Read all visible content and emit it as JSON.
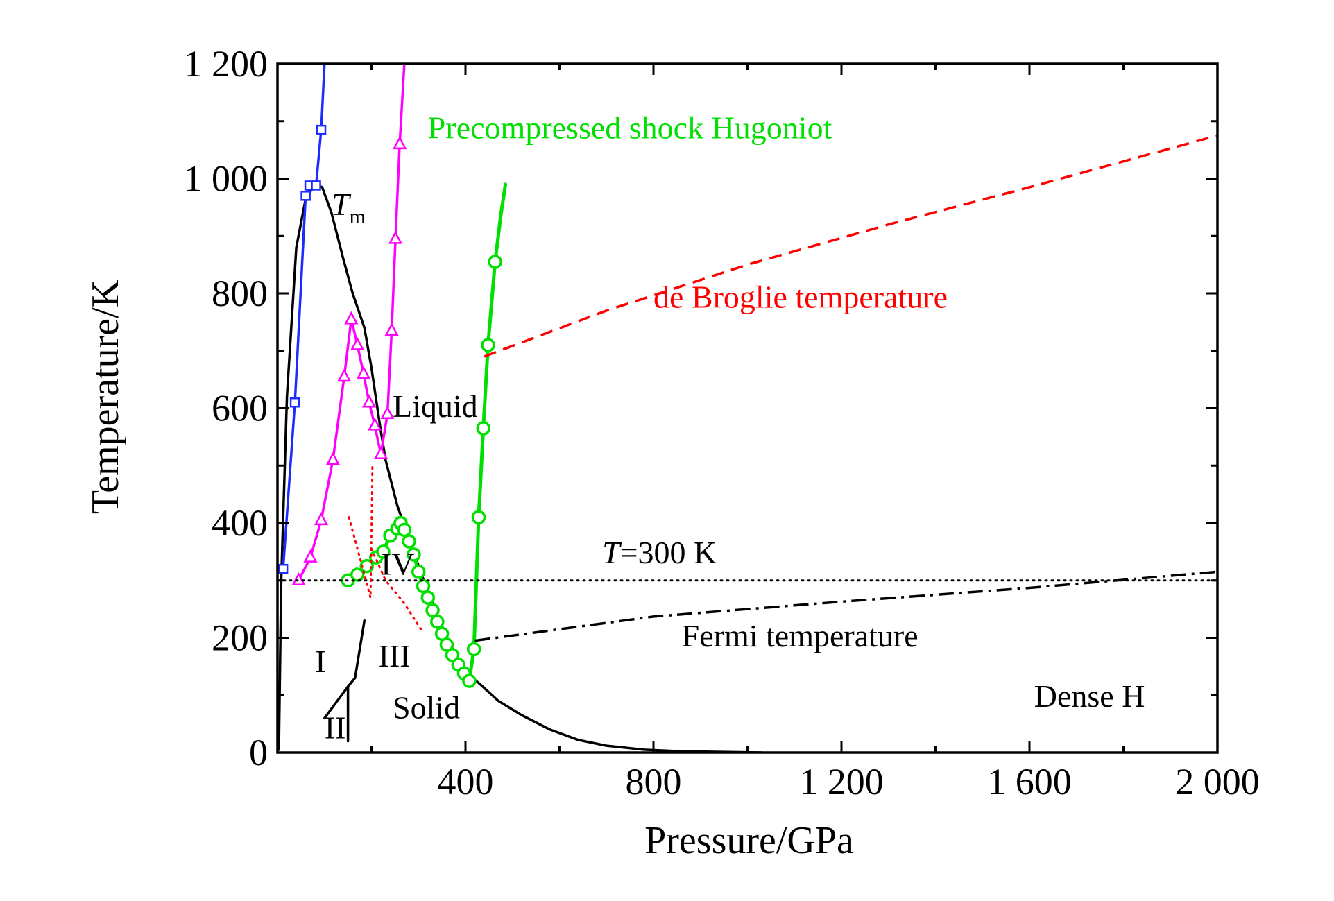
{
  "chart_data": {
    "type": "line",
    "title": "",
    "xlabel": "Pressure/GPa",
    "ylabel": "Temperature/K",
    "xlim": [
      0,
      2000
    ],
    "ylim": [
      0,
      1200
    ],
    "x_ticks": [
      {
        "value": 400,
        "label": "400"
      },
      {
        "value": 800,
        "label": "800"
      },
      {
        "value": 1200,
        "label": "1 200"
      },
      {
        "value": 1600,
        "label": "1 600"
      },
      {
        "value": 2000,
        "label": "2 000"
      }
    ],
    "y_ticks": [
      {
        "value": 0,
        "label": "0"
      },
      {
        "value": 200,
        "label": "200"
      },
      {
        "value": 400,
        "label": "400"
      },
      {
        "value": 600,
        "label": "600"
      },
      {
        "value": 800,
        "label": "800"
      },
      {
        "value": 1000,
        "label": "1 000"
      },
      {
        "value": 1200,
        "label": "1 200"
      }
    ],
    "colors": {
      "black": "#000000",
      "blue": "#1c2bff",
      "magenta": "#ff00ff",
      "green": "#00e000",
      "red": "#ff0000"
    },
    "series": [
      {
        "name": "melting-curve-Tm",
        "color": "black",
        "style": "solid",
        "marker": "none",
        "points": [
          [
            3,
            5
          ],
          [
            8,
            300
          ],
          [
            20,
            620
          ],
          [
            40,
            880
          ],
          [
            60,
            965
          ],
          [
            80,
            990
          ],
          [
            95,
            985
          ],
          [
            115,
            940
          ],
          [
            140,
            860
          ],
          [
            160,
            800
          ],
          [
            185,
            740
          ],
          [
            200,
            670
          ],
          [
            218,
            570
          ],
          [
            230,
            510
          ],
          [
            255,
            430
          ],
          [
            285,
            360
          ],
          [
            320,
            280
          ],
          [
            360,
            200
          ],
          [
            400,
            140
          ],
          [
            430,
            120
          ],
          [
            470,
            90
          ],
          [
            520,
            65
          ],
          [
            580,
            40
          ],
          [
            640,
            22
          ],
          [
            700,
            12
          ],
          [
            780,
            5
          ],
          [
            860,
            2
          ],
          [
            960,
            1
          ],
          [
            1030,
            0
          ]
        ]
      },
      {
        "name": "blue-squares",
        "color": "blue",
        "style": "solid",
        "marker": "square",
        "points": [
          [
            12,
            320
          ],
          [
            37,
            610
          ],
          [
            60,
            970
          ],
          [
            68,
            988
          ],
          [
            82,
            988
          ],
          [
            93,
            1085
          ],
          [
            100,
            1200
          ]
        ],
        "marker_points": [
          [
            12,
            320
          ],
          [
            37,
            610
          ],
          [
            60,
            970
          ],
          [
            68,
            988
          ],
          [
            82,
            988
          ],
          [
            93,
            1085
          ]
        ]
      },
      {
        "name": "magenta-triangles",
        "color": "magenta",
        "style": "solid",
        "marker": "triangle",
        "points": [
          [
            45,
            300
          ],
          [
            70,
            340
          ],
          [
            93,
            405
          ],
          [
            118,
            510
          ],
          [
            142,
            655
          ],
          [
            157,
            755
          ],
          [
            170,
            710
          ],
          [
            183,
            660
          ],
          [
            195,
            610
          ],
          [
            207,
            570
          ],
          [
            220,
            520
          ],
          [
            234,
            590
          ],
          [
            243,
            735
          ],
          [
            251,
            895
          ],
          [
            260,
            1060
          ],
          [
            270,
            1200
          ]
        ],
        "marker_points": [
          [
            45,
            300
          ],
          [
            70,
            340
          ],
          [
            93,
            405
          ],
          [
            118,
            510
          ],
          [
            142,
            655
          ],
          [
            157,
            755
          ],
          [
            170,
            710
          ],
          [
            183,
            660
          ],
          [
            195,
            610
          ],
          [
            207,
            570
          ],
          [
            220,
            520
          ],
          [
            234,
            590
          ],
          [
            243,
            735
          ],
          [
            251,
            895
          ],
          [
            260,
            1060
          ]
        ]
      },
      {
        "name": "Precompressed shock Hugoniot",
        "color": "green",
        "style": "solid",
        "marker": "circle",
        "points": [
          [
            150,
            300
          ],
          [
            170,
            310
          ],
          [
            190,
            325
          ],
          [
            210,
            340
          ],
          [
            225,
            350
          ],
          [
            240,
            378
          ],
          [
            255,
            390
          ],
          [
            262,
            400
          ],
          [
            270,
            388
          ],
          [
            280,
            368
          ],
          [
            290,
            345
          ],
          [
            300,
            315
          ],
          [
            310,
            290
          ],
          [
            320,
            270
          ],
          [
            330,
            248
          ],
          [
            340,
            228
          ],
          [
            350,
            207
          ],
          [
            360,
            188
          ],
          [
            372,
            170
          ],
          [
            385,
            153
          ],
          [
            397,
            138
          ],
          [
            408,
            125
          ],
          [
            418,
            180
          ],
          [
            428,
            410
          ],
          [
            438,
            565
          ],
          [
            448,
            710
          ],
          [
            463,
            855
          ],
          [
            475,
            935
          ],
          [
            485,
            990
          ]
        ],
        "marker_points": [
          [
            150,
            300
          ],
          [
            170,
            310
          ],
          [
            190,
            325
          ],
          [
            210,
            340
          ],
          [
            225,
            350
          ],
          [
            240,
            378
          ],
          [
            255,
            390
          ],
          [
            262,
            400
          ],
          [
            270,
            388
          ],
          [
            280,
            368
          ],
          [
            290,
            345
          ],
          [
            300,
            315
          ],
          [
            310,
            290
          ],
          [
            320,
            270
          ],
          [
            330,
            248
          ],
          [
            340,
            228
          ],
          [
            350,
            207
          ],
          [
            360,
            188
          ],
          [
            372,
            170
          ],
          [
            385,
            153
          ],
          [
            397,
            138
          ],
          [
            408,
            125
          ],
          [
            418,
            180
          ],
          [
            428,
            410
          ],
          [
            438,
            565
          ],
          [
            448,
            710
          ],
          [
            463,
            855
          ]
        ]
      },
      {
        "name": "de Broglie temperature",
        "color": "red",
        "style": "dashed",
        "marker": "none",
        "points": [
          [
            440,
            690
          ],
          [
            700,
            770
          ],
          [
            1000,
            850
          ],
          [
            1300,
            920
          ],
          [
            1600,
            985
          ],
          [
            2000,
            1075
          ]
        ]
      },
      {
        "name": "Fermi temperature",
        "color": "black",
        "style": "dashdot",
        "marker": "none",
        "points": [
          [
            420,
            195
          ],
          [
            800,
            237
          ],
          [
            1200,
            263
          ],
          [
            1600,
            287
          ],
          [
            2000,
            315
          ]
        ]
      },
      {
        "name": "T=300 K",
        "color": "black",
        "style": "dotted",
        "marker": "none",
        "points": [
          [
            0,
            300
          ],
          [
            2000,
            300
          ]
        ]
      },
      {
        "name": "red-dotted-boundary-upper",
        "color": "red",
        "style": "dotted",
        "marker": "none",
        "points": [
          [
            152,
            410
          ],
          [
            175,
            340
          ],
          [
            198,
            270
          ],
          [
            202,
            500
          ]
        ]
      },
      {
        "name": "red-dotted-boundary-lower",
        "color": "red",
        "style": "dotted",
        "marker": "none",
        "points": [
          [
            200,
            355
          ],
          [
            230,
            300
          ],
          [
            270,
            260
          ],
          [
            305,
            215
          ]
        ]
      },
      {
        "name": "phase-boundary-I-III",
        "color": "black",
        "style": "solid",
        "marker": "none",
        "points": [
          [
            100,
            60
          ],
          [
            150,
            115
          ],
          [
            165,
            130
          ],
          [
            185,
            230
          ]
        ]
      },
      {
        "name": "phase-boundary-I-II",
        "color": "black",
        "style": "solid",
        "marker": "none",
        "points": [
          [
            150,
            20
          ],
          [
            150,
            115
          ]
        ]
      }
    ],
    "annotations": [
      {
        "key": "hugoniot",
        "text": "Precompressed shock Hugoniot",
        "x": 320,
        "y": 1070,
        "color": "green"
      },
      {
        "key": "broglie",
        "text": "de Broglie temperature",
        "x": 800,
        "y": 775,
        "color": "red"
      },
      {
        "key": "liquid",
        "text": "Liquid",
        "x": 245,
        "y": 585,
        "color": "black"
      },
      {
        "key": "fermi",
        "text": "Fermi temperature",
        "x": 860,
        "y": 185,
        "color": "black"
      },
      {
        "key": "dense",
        "text": "Dense H",
        "x": 1610,
        "y": 80,
        "color": "black"
      },
      {
        "key": "solid",
        "text": "Solid",
        "x": 245,
        "y": 60,
        "color": "black"
      },
      {
        "key": "phaseI",
        "text": "I",
        "x": 80,
        "y": 140,
        "color": "black"
      },
      {
        "key": "phaseII",
        "text": "II",
        "x": 100,
        "y": 25,
        "color": "black"
      },
      {
        "key": "phaseIII",
        "text": "III",
        "x": 215,
        "y": 150,
        "color": "black"
      },
      {
        "key": "phaseIV",
        "text": "IV",
        "x": 220,
        "y": 310,
        "color": "black"
      }
    ],
    "labels": {
      "tm_main": "T",
      "tm_sub": "m",
      "t300_italic": "T",
      "t300_rest": "=300 K"
    }
  }
}
